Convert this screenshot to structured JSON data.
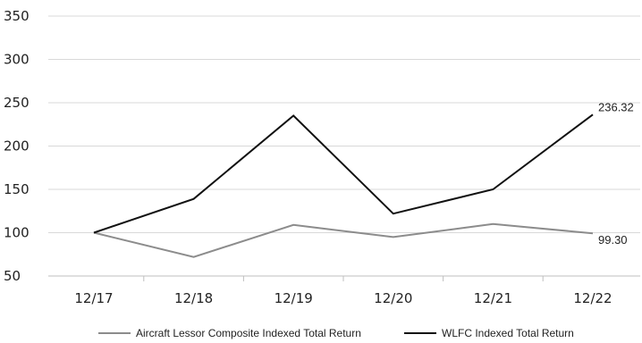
{
  "chart_data": {
    "type": "line",
    "categories": [
      "12/17",
      "12/18",
      "12/19",
      "12/20",
      "12/21",
      "12/22"
    ],
    "ylim": [
      50,
      350
    ],
    "yticks": [
      50,
      100,
      150,
      200,
      250,
      300,
      350
    ],
    "grid": true,
    "legend_placement": "bottom-center",
    "series": [
      {
        "name": "Aircraft Lessor Composite Indexed Total Return",
        "values": [
          100,
          72,
          109,
          95,
          110,
          99.3
        ],
        "color": "#8c8c8c",
        "end_label": "99.30"
      },
      {
        "name": "WLFC Indexed Total Return",
        "values": [
          100,
          139,
          235,
          122,
          150,
          236.32
        ],
        "color": "#111111",
        "end_label": "236.32"
      }
    ]
  }
}
